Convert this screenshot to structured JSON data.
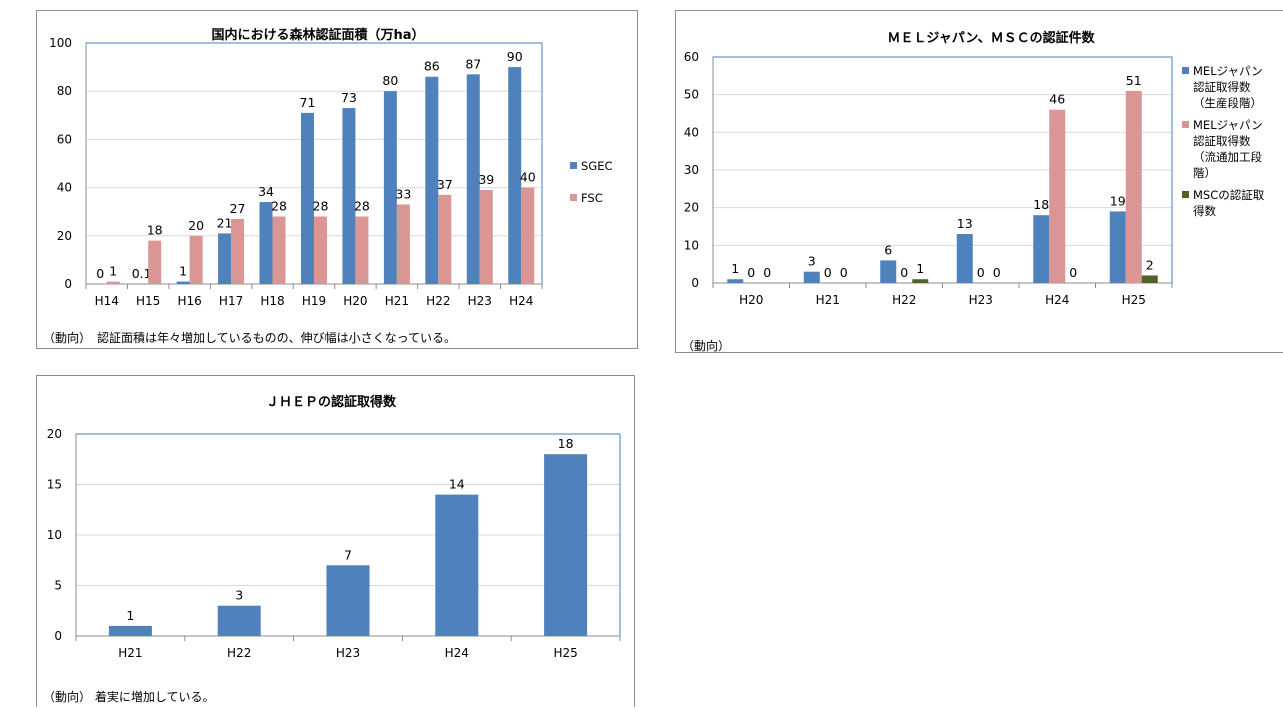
{
  "colors": {
    "blue": "#4f81bd",
    "pink": "#d99694",
    "green": "#4f6228",
    "grid": "#d9d9d9",
    "axis": "#8c8c8c",
    "plot_border": "#4a7ebb"
  },
  "chart_data": [
    {
      "type": "bar",
      "title": "国内における森林認証面積（万ha）",
      "categories": [
        "H14",
        "H15",
        "H16",
        "H17",
        "H18",
        "H19",
        "H20",
        "H21",
        "H22",
        "H23",
        "H24"
      ],
      "series": [
        {
          "name": "SGEC",
          "values": [
            0,
            0.1,
            1,
            21,
            34,
            71,
            73,
            80,
            86,
            87,
            90
          ],
          "labels": [
            "0",
            "0.1",
            "1",
            "21",
            "34",
            "71",
            "73",
            "80",
            "86",
            "87",
            "90"
          ],
          "color": "#4f81bd"
        },
        {
          "name": "FSC",
          "values": [
            1,
            18,
            20,
            27,
            28,
            28,
            28,
            33,
            37,
            39,
            40
          ],
          "labels": [
            "1",
            "18",
            "20",
            "27",
            "28",
            "28",
            "28",
            "33",
            "37",
            "39",
            "40"
          ],
          "color": "#d99694"
        }
      ],
      "ylim": [
        0,
        100
      ],
      "yticks": [
        "0",
        "20",
        "40",
        "60",
        "80",
        "100"
      ],
      "xlabel": "",
      "ylabel": "",
      "grid": true,
      "legend": "right",
      "note": "（動向）　認証面積は年々増加しているものの、伸び幅は小さくなっている。"
    },
    {
      "type": "bar",
      "title": "ＭＥＬジャパン、ＭＳＣの認証件数",
      "categories": [
        "H20",
        "H21",
        "H22",
        "H23",
        "H24",
        "H25"
      ],
      "series": [
        {
          "name": "MELジャパン認証取得数（生産段階）",
          "legend_lines": [
            "MELジャパン",
            "認証取得数",
            "（生産段階）"
          ],
          "values": [
            1,
            3,
            6,
            13,
            18,
            19
          ],
          "labels": [
            "1",
            "3",
            "6",
            "13",
            "18",
            "19"
          ],
          "color": "#4f81bd"
        },
        {
          "name": "MELジャパン認証取得数（流通加工段階）",
          "legend_lines": [
            "MELジャパン",
            "認証取得数",
            "（流通加工段",
            "階）"
          ],
          "values": [
            0,
            0,
            0,
            0,
            46,
            51
          ],
          "labels": [
            "0",
            "0",
            "0",
            "0",
            "46",
            "51"
          ],
          "color": "#d99694"
        },
        {
          "name": "MSCの認証取得数",
          "legend_lines": [
            "MSCの認証取",
            "得数"
          ],
          "values": [
            0,
            0,
            1,
            0,
            0,
            2
          ],
          "labels": [
            "0",
            "0",
            "1",
            "0",
            "0",
            "2"
          ],
          "color": "#4f6228"
        }
      ],
      "ylim": [
        0,
        60
      ],
      "yticks": [
        "0",
        "10",
        "20",
        "30",
        "40",
        "50",
        "60"
      ],
      "xlabel": "",
      "ylabel": "",
      "grid": true,
      "legend": "right",
      "note": "（動向）"
    },
    {
      "type": "bar",
      "title": "ＪＨＥＰの認証取得数",
      "categories": [
        "H21",
        "H22",
        "H23",
        "H24",
        "H25"
      ],
      "series": [
        {
          "values": [
            1,
            3,
            7,
            14,
            18
          ],
          "labels": [
            "1",
            "3",
            "7",
            "14",
            "18"
          ],
          "color": "#4f81bd"
        }
      ],
      "ylim": [
        0,
        20
      ],
      "yticks": [
        "0",
        "5",
        "10",
        "15",
        "20"
      ],
      "xlabel": "",
      "ylabel": "",
      "grid": true,
      "legend": "none",
      "note": "（動向）  着実に増加している。"
    }
  ]
}
